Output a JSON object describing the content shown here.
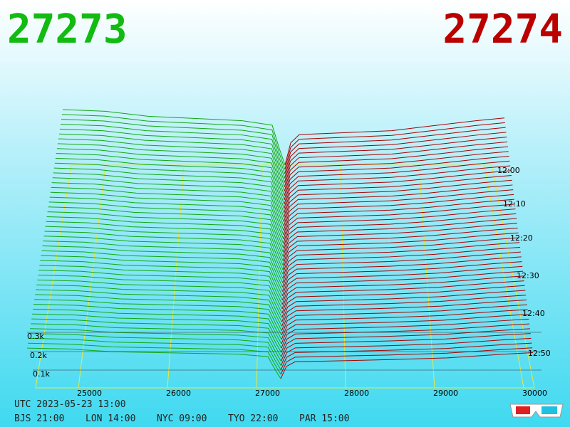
{
  "header": {
    "bid": "27273",
    "ask": "27274"
  },
  "price_axis": [
    "25000",
    "26000",
    "27000",
    "28000",
    "29000",
    "30000"
  ],
  "depth_axis": [
    "0.3k",
    "0.2k",
    "0.1k"
  ],
  "time_axis": [
    "12:00",
    "12:10",
    "12:20",
    "12:30",
    "12:40",
    "12:50"
  ],
  "footer": {
    "utc": "UTC 2023-05-23 13:00",
    "cities": [
      "BJS 21:00",
      "LON 14:00",
      "NYC 09:00",
      "TYO 22:00",
      "PAR 15:00"
    ]
  }
}
